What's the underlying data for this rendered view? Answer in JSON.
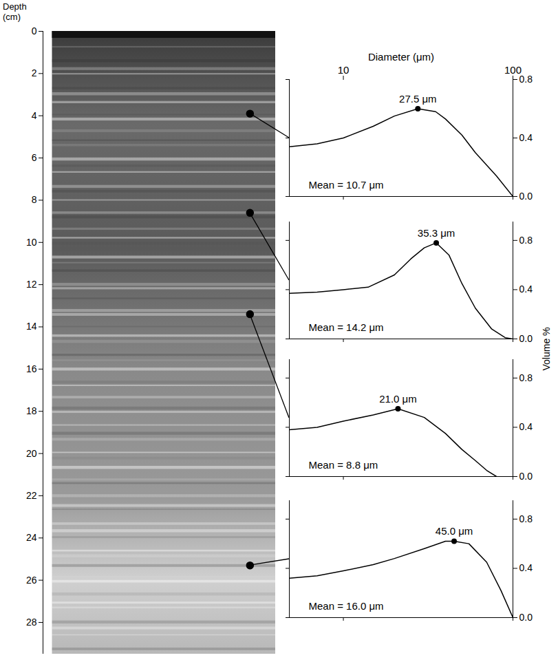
{
  "chart_data": [
    {
      "type": "core",
      "ylabel": "Depth (cm)",
      "ylim": [
        0,
        29.5
      ],
      "yticks": [
        0,
        2,
        4,
        6,
        8,
        10,
        12,
        14,
        16,
        18,
        20,
        22,
        24,
        26,
        28
      ],
      "sample_depths": [
        3.9,
        8.6,
        13.4,
        25.3
      ]
    },
    {
      "type": "line",
      "xlabel": "Diameter (μm)",
      "log": "x",
      "xlim": [
        4.8,
        100
      ],
      "xticks": [
        10,
        100
      ],
      "ylim": [
        0,
        0.8
      ],
      "yticks": [
        {
          "value": 0,
          "label": "0.0"
        },
        {
          "value": 0.4,
          "label": "0.4"
        },
        {
          "value": 0.8,
          "label": "0.8"
        }
      ],
      "color": "#000000",
      "x": [
        4.8,
        7,
        10,
        15,
        20,
        27.5,
        35,
        40,
        50,
        60,
        80,
        100
      ],
      "values": [
        0.34,
        0.36,
        0.4,
        0.48,
        0.55,
        0.6,
        0.58,
        0.53,
        0.42,
        0.3,
        0.14,
        0.0
      ],
      "peak": {
        "x": 27.5,
        "y": 0.6,
        "label": "27.5 μm"
      },
      "annotation": "Mean = 10.7 μm"
    },
    {
      "type": "line",
      "ylabel": "Volume %",
      "log": "x",
      "xlim": [
        4.8,
        100
      ],
      "xticks": [
        10,
        100
      ],
      "tick_labels": "y",
      "ylim": [
        0,
        0.95
      ],
      "yticks": [
        {
          "value": 0,
          "label": "0.0"
        },
        {
          "value": 0.4,
          "label": "0.4"
        },
        {
          "value": 0.8,
          "label": "0.8"
        }
      ],
      "color": "#000000",
      "x": [
        4.8,
        7,
        10,
        14,
        20,
        25,
        30,
        35.3,
        42,
        50,
        60,
        75,
        90,
        100
      ],
      "values": [
        0.37,
        0.38,
        0.4,
        0.42,
        0.52,
        0.65,
        0.74,
        0.78,
        0.68,
        0.45,
        0.25,
        0.08,
        0.01,
        0.0
      ],
      "peak": {
        "x": 35.3,
        "y": 0.78,
        "label": "35.3 μm"
      },
      "annotation": "Mean = 14.2 μm"
    },
    {
      "type": "line",
      "log": "x",
      "xlim": [
        4.8,
        100
      ],
      "xticks": [
        10,
        100
      ],
      "tick_labels": "y",
      "ylim": [
        0,
        0.95
      ],
      "yticks": [
        {
          "value": 0,
          "label": "0.0"
        },
        {
          "value": 0.4,
          "label": "0.4"
        },
        {
          "value": 0.8,
          "label": "0.8"
        }
      ],
      "color": "#000000",
      "x": [
        4.8,
        7,
        10,
        15,
        21,
        30,
        40,
        50,
        60,
        70,
        80
      ],
      "values": [
        0.38,
        0.4,
        0.45,
        0.5,
        0.55,
        0.48,
        0.35,
        0.22,
        0.13,
        0.05,
        0.0
      ],
      "peak": {
        "x": 21.0,
        "y": 0.55,
        "label": "21.0 μm"
      },
      "annotation": "Mean = 8.8 μm"
    },
    {
      "type": "line",
      "log": "x",
      "xlim": [
        4.8,
        100
      ],
      "xticks": [
        10,
        100
      ],
      "tick_labels": "y",
      "ylim": [
        0,
        0.95
      ],
      "yticks": [
        {
          "value": 0,
          "label": "0.0"
        },
        {
          "value": 0.4,
          "label": "0.4"
        },
        {
          "value": 0.8,
          "label": "0.8"
        }
      ],
      "color": "#000000",
      "x": [
        4.8,
        7,
        10,
        15,
        20,
        30,
        40,
        45,
        55,
        70,
        85,
        100
      ],
      "values": [
        0.32,
        0.34,
        0.38,
        0.43,
        0.48,
        0.56,
        0.62,
        0.62,
        0.6,
        0.45,
        0.22,
        0.0
      ],
      "peak": {
        "x": 45.0,
        "y": 0.62,
        "label": "45.0 μm"
      },
      "annotation": "Mean = 16.0 μm"
    }
  ]
}
